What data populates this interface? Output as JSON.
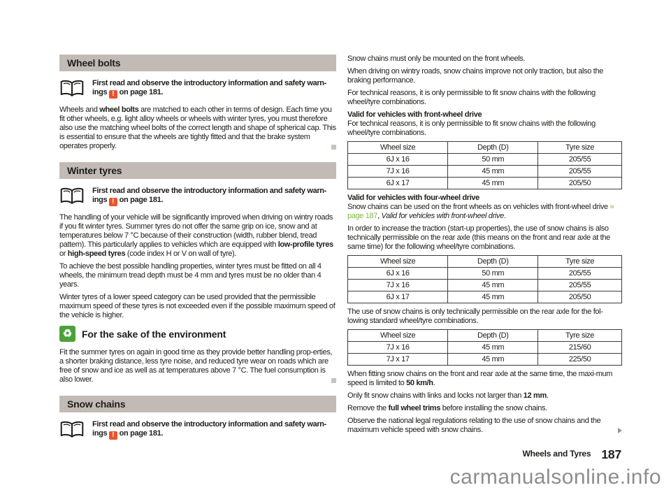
{
  "page": {
    "footer_section": "Wheels and Tyres",
    "footer_page": "187",
    "watermark": "carmanualsonline.info"
  },
  "colors": {
    "header_bg": "#c2bbb5",
    "warning": "#e8542c",
    "env_green": "#4da13b",
    "link_green": "#86b944"
  },
  "left": {
    "wheel_bolts": {
      "title": "Wheel bolts",
      "note": [
        {
          "t": "First read and observe the introductory information and safety warn-ings ",
          "b": true
        },
        {
          "icon": "warning-icon",
          "glyph": "!"
        },
        {
          "t": " on page 181.",
          "b": true
        }
      ],
      "body": [
        {
          "t": "Wheels and "
        },
        {
          "t": "wheel bolts",
          "b": true
        },
        {
          "t": " are matched to each other in terms of design. Each time you fit other wheels, e.g. light alloy wheels or wheels with winter tyres, you must therefore also use the matching wheel bolts of the correct length and shape of spherical cap. This is essential to ensure that the wheels are tightly fitted and that the brake system operates properly."
        }
      ]
    },
    "winter_tyres": {
      "title": "Winter tyres",
      "note": [
        {
          "t": "First read and observe the introductory information and safety warn-ings ",
          "b": true
        },
        {
          "icon": "warning-icon",
          "glyph": "!"
        },
        {
          "t": " on page 181.",
          "b": true
        }
      ],
      "p1": [
        {
          "t": "The handling of your vehicle will be significantly improved when driving on wintry roads if you fit winter tyres. Summer tyres do not offer the same grip on ice, snow and at temperatures below 7 °C because of their construction (width, rubber blend, tread pattern). This particularly applies to vehicles which are equipped with "
        },
        {
          "t": "low-profile tyres",
          "b": true
        },
        {
          "t": " or "
        },
        {
          "t": "high-speed tyres",
          "b": true
        },
        {
          "t": " (code index H or V on wall of tyre)."
        }
      ],
      "p2": [
        {
          "t": "To achieve the best possible handling properties, winter tyres must be fitted on all 4 wheels, the minimum tread depth must be 4 mm and tyres must be no older than 4 years."
        }
      ],
      "p3": [
        {
          "t": "Winter tyres of a lower speed category can be used provided that the permissible maximum speed of these tyres is not exceeded even if the possible maximum speed of the vehicle is higher."
        }
      ]
    },
    "environment": {
      "title": "For the sake of the environment",
      "body": [
        {
          "t": "Fit the summer tyres on again in good time as they provide better handling prop-erties, a shorter braking distance, less tyre noise, and reduced tyre wear on roads which are free of snow and ice as well as at temperatures above 7 °C. The fuel consumption is also lower."
        }
      ]
    },
    "snow_chains": {
      "title": "Snow chains",
      "note": [
        {
          "t": "First read and observe the introductory information and safety warn-ings ",
          "b": true
        },
        {
          "icon": "warning-icon",
          "glyph": "!"
        },
        {
          "t": " on page 181.",
          "b": true
        }
      ]
    }
  },
  "right": {
    "p1": [
      {
        "t": "Snow chains must only be mounted on the front wheels."
      }
    ],
    "p2": [
      {
        "t": "When driving on wintry roads, snow chains improve not only traction, but also the braking performance."
      }
    ],
    "p3": [
      {
        "t": "For technical reasons, it is only permissible to fit snow chains with the following wheel/tyre combinations."
      }
    ],
    "fwd": {
      "title": "Valid for vehicles with front-wheel drive",
      "body": [
        {
          "t": "For technical reasons, it is only permissible to fit snow chains with the following wheel/tyre combinations."
        }
      ]
    },
    "table1": {
      "headers": [
        "Wheel size",
        "Depth (D)",
        "Tyre size"
      ],
      "rows": [
        [
          "6J x 16",
          "50 mm",
          "205/55"
        ],
        [
          "7J x 16",
          "45 mm",
          "205/55"
        ],
        [
          "6J x 17",
          "45 mm",
          "205/50"
        ]
      ]
    },
    "awd": {
      "title": "Valid for vehicles with four-wheel drive",
      "body": [
        {
          "t": "Snow chains can be used on the front wheels as on vehicles with front-wheel drive "
        },
        {
          "t": "» page 187",
          "link": true
        },
        {
          "t": ", "
        },
        {
          "t": "Valid for vehicles with front-wheel drive",
          "i": true
        },
        {
          "t": "."
        }
      ],
      "p2": [
        {
          "t": "In order to increase the traction (start-up properties), the use of snow chains is also technically permissible on the rear axle (this means on the front and rear axle at the same time) for the following wheel/tyre combinations."
        }
      ]
    },
    "table2": {
      "headers": [
        "Wheel size",
        "Depth (D)",
        "Tyre size"
      ],
      "rows": [
        [
          "6J x 16",
          "50 mm",
          "205/55"
        ],
        [
          "7J x 16",
          "45 mm",
          "205/55"
        ],
        [
          "6J x 17",
          "45 mm",
          "205/50"
        ]
      ]
    },
    "p4": [
      {
        "t": "The use of snow chains is only technically permissible on the rear axle for the fol-lowing standard wheel/tyre combinations."
      }
    ],
    "table3": {
      "headers": [
        "Wheel size",
        "Depth (D)",
        "Tyre size"
      ],
      "rows": [
        [
          "7J x 16",
          "45 mm",
          "215/60"
        ],
        [
          "7J x 17",
          "45 mm",
          "225/50"
        ]
      ]
    },
    "p5": [
      {
        "t": "When fitting snow chains on the front and rear axle at the same time, the maxi-mum speed is limited to "
      },
      {
        "t": "50 km/h",
        "b": true
      },
      {
        "t": "."
      }
    ],
    "p6": [
      {
        "t": "Only fit snow chains with links and locks not larger than "
      },
      {
        "t": "12 mm",
        "b": true
      },
      {
        "t": "."
      }
    ],
    "p7": [
      {
        "t": "Remove the "
      },
      {
        "t": "full wheel trims",
        "b": true
      },
      {
        "t": " before installing the snow chains."
      }
    ],
    "p8": [
      {
        "t": "Observe the national legal regulations relating to the use of snow chains and the maximum vehicle speed with snow chains."
      }
    ]
  }
}
